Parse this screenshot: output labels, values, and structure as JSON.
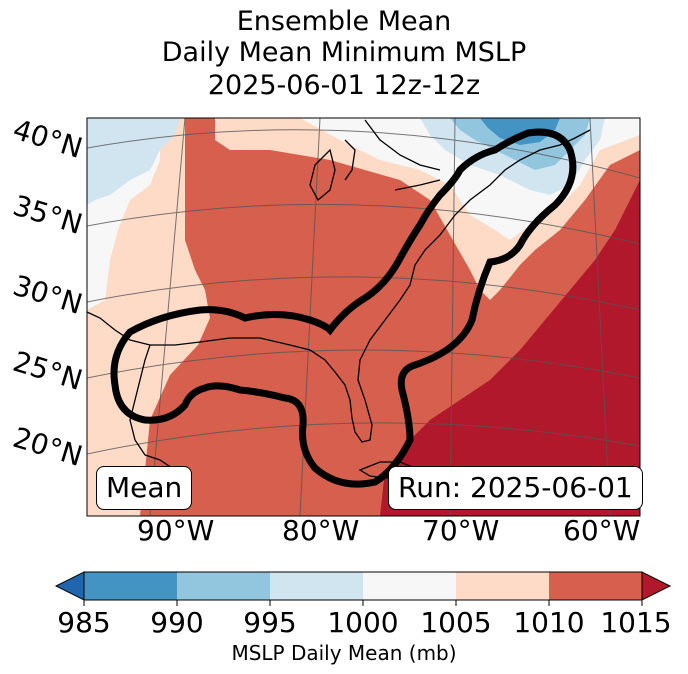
{
  "title": {
    "line1": "Ensemble Mean",
    "line2": "Daily Mean Minimum MSLP",
    "line3": "2025-06-01 12z-12z"
  },
  "map": {
    "lat_labels": [
      "40°N",
      "35°N",
      "30°N",
      "25°N",
      "20°N"
    ],
    "lon_labels": [
      "90°W",
      "80°W",
      "70°W",
      "60°W"
    ],
    "mean_label": "Mean",
    "run_label": "Run: 2025-06-01"
  },
  "colorbar": {
    "ticks": [
      "985",
      "990",
      "995",
      "1000",
      "1005",
      "1010",
      "1015"
    ],
    "label": "MSLP Daily Mean (mb)",
    "colors": {
      "lt985": "#2166ac",
      "985_990": "#4393c3",
      "990_995": "#92c5de",
      "995_1000": "#d1e5f0",
      "1000_1005": "#f7f7f7",
      "1005_1010": "#fddbc7",
      "1010_1015": "#d6604d",
      "gt1015": "#b2182b"
    }
  }
}
